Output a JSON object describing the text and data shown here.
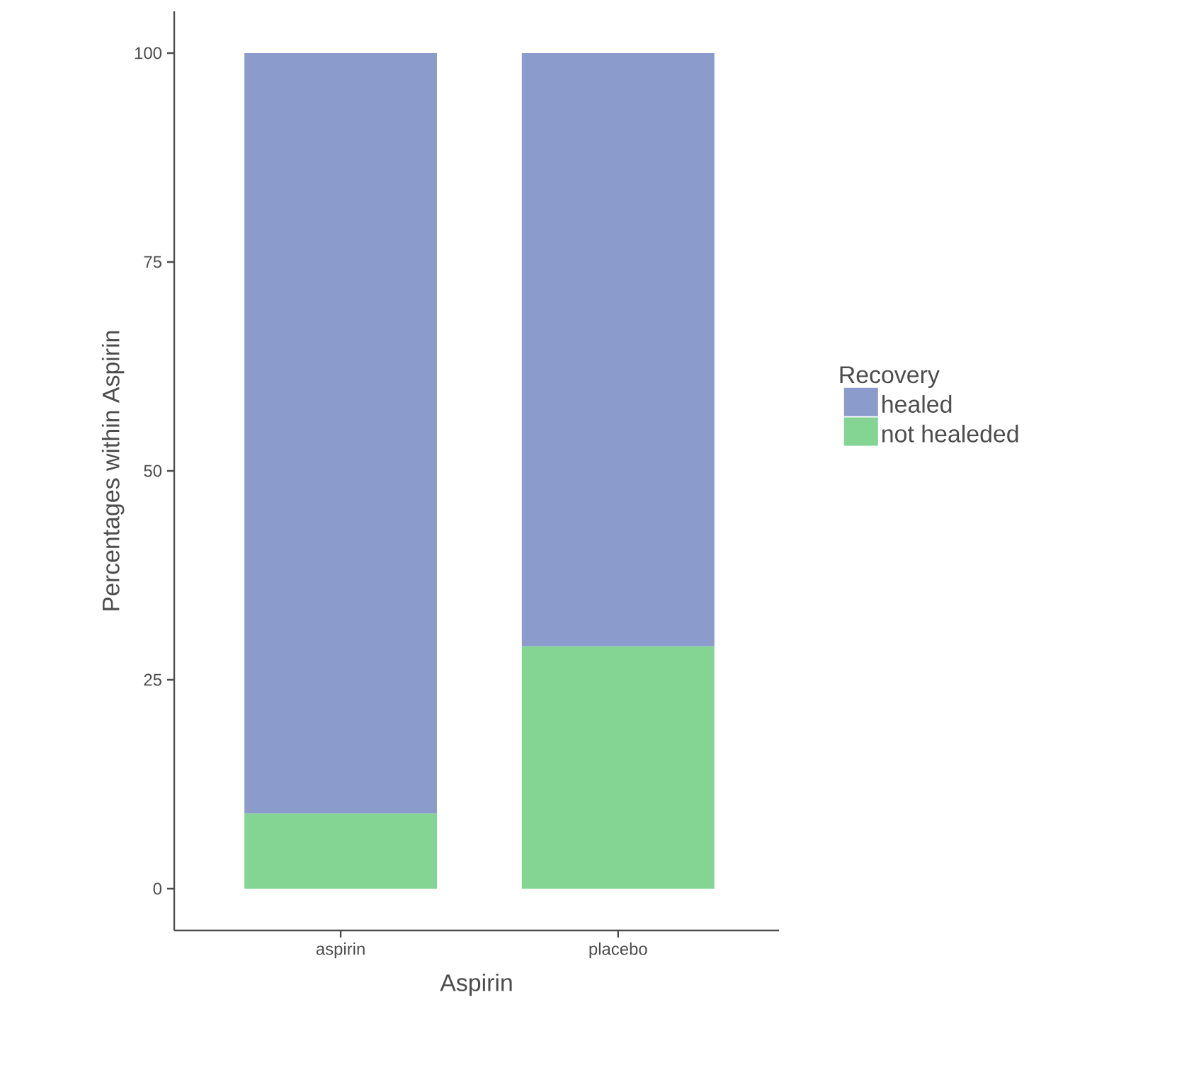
{
  "chart_data": {
    "type": "bar",
    "stacked": true,
    "xlabel": "Aspirin",
    "ylabel": "Percentages within Aspirin",
    "legend_title": "Recovery",
    "legend": "right",
    "categories": [
      "aspirin",
      "placebo"
    ],
    "series": [
      {
        "name": "not healeded",
        "color": "#84d494",
        "values": [
          9,
          29
        ]
      },
      {
        "name": "healed",
        "color": "#8a9bcc",
        "values": [
          91,
          71
        ]
      }
    ],
    "ylim": [
      -5,
      105
    ],
    "yticks": [
      0,
      25,
      50,
      75,
      100
    ]
  }
}
